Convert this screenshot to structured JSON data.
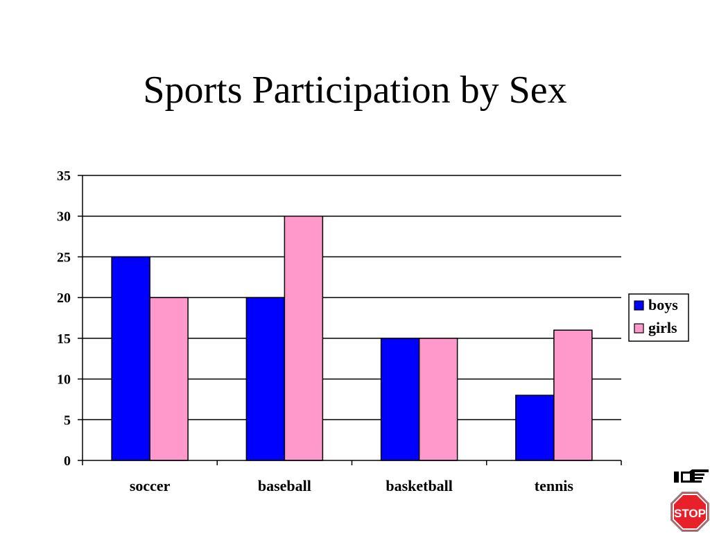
{
  "slide": {
    "title": "Sports Participation by Sex"
  },
  "chart_data": {
    "type": "bar",
    "title": "",
    "xlabel": "",
    "ylabel": "",
    "categories": [
      "soccer",
      "baseball",
      "basketball",
      "tennis"
    ],
    "series": [
      {
        "name": "boys",
        "values": [
          25,
          20,
          15,
          8
        ],
        "color": "#0000FF"
      },
      {
        "name": "girls",
        "values": [
          20,
          30,
          15,
          16
        ],
        "color": "#FF99CC"
      }
    ],
    "ylim": [
      0,
      35
    ],
    "yticks": [
      0,
      5,
      10,
      15,
      20,
      25,
      30,
      35
    ],
    "grid": true,
    "legend_position": "right"
  },
  "nav": {
    "next_icon": "pointing-hand-icon",
    "stop_icon": "stop-sign-icon",
    "stop_label": "STOP",
    "stop_color": "#E8202A"
  }
}
